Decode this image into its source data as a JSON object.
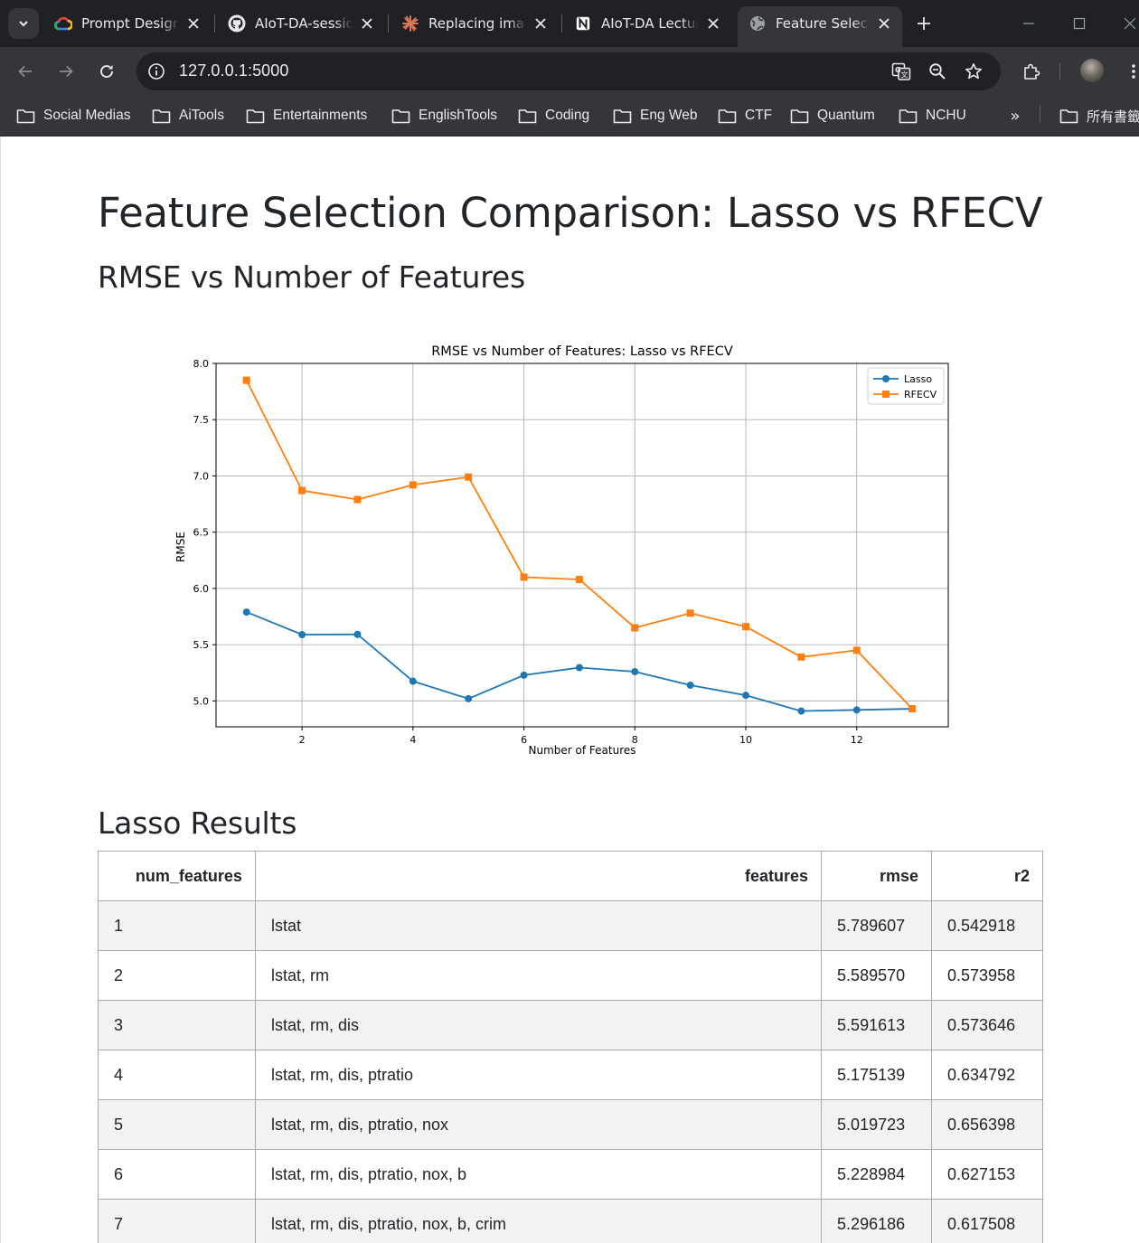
{
  "browser": {
    "tabs": [
      {
        "title": "Prompt Design",
        "icon": "google-cloud-icon",
        "active": false
      },
      {
        "title": "AIoT-DA-session",
        "icon": "github-icon",
        "active": false
      },
      {
        "title": "Replacing image",
        "icon": "claude-icon",
        "active": false
      },
      {
        "title": "AIoT-DA Lecture",
        "icon": "notion-icon",
        "active": false
      },
      {
        "title": "Feature Selection",
        "icon": "globe-icon",
        "active": true
      }
    ],
    "url": "127.0.0.1:5000",
    "bookmarks": [
      "Social Medias",
      "AiTools",
      "Entertainments",
      "EnglishTools",
      "Coding",
      "Eng Web",
      "CTF",
      "Quantum",
      "NCHU"
    ],
    "all_bookmarks_label": "所有書籤",
    "more_label": "»"
  },
  "page": {
    "title": "Feature Selection Comparison: Lasso vs RFECV",
    "chart_heading": "RMSE vs Number of Features",
    "table_heading": "Lasso Results"
  },
  "chart_data": {
    "type": "line",
    "title": "RMSE vs Number of Features: Lasso vs RFECV",
    "xlabel": "Number of Features",
    "ylabel": "RMSE",
    "x": [
      1,
      2,
      3,
      4,
      5,
      6,
      7,
      8,
      9,
      10,
      11,
      12,
      13
    ],
    "xlim": [
      0.45,
      13.65
    ],
    "ylim": [
      4.77,
      8.0
    ],
    "xticks": [
      "2",
      "4",
      "6",
      "8",
      "10",
      "12"
    ],
    "yticks": [
      "5.0",
      "5.5",
      "6.0",
      "6.5",
      "7.0",
      "7.5",
      "8.0"
    ],
    "grid": true,
    "legend_position": "upper right",
    "series": [
      {
        "name": "Lasso",
        "color": "#1f77b4",
        "marker": "circle",
        "values": [
          5.789607,
          5.58957,
          5.591613,
          5.175139,
          5.019723,
          5.228984,
          5.296186,
          5.26,
          5.14,
          5.05,
          4.91,
          4.92,
          4.93
        ]
      },
      {
        "name": "RFECV",
        "color": "#ff7f0e",
        "marker": "square",
        "values": [
          7.85,
          6.87,
          6.79,
          6.92,
          6.99,
          6.1,
          6.08,
          5.65,
          5.78,
          5.66,
          5.39,
          5.45,
          4.93
        ]
      }
    ]
  },
  "table": {
    "headers": [
      "num_features",
      "features",
      "rmse",
      "r2"
    ],
    "rows": [
      [
        "1",
        "lstat",
        "5.789607",
        "0.542918"
      ],
      [
        "2",
        "lstat, rm",
        "5.589570",
        "0.573958"
      ],
      [
        "3",
        "lstat, rm, dis",
        "5.591613",
        "0.573646"
      ],
      [
        "4",
        "lstat, rm, dis, ptratio",
        "5.175139",
        "0.634792"
      ],
      [
        "5",
        "lstat, rm, dis, ptratio, nox",
        "5.019723",
        "0.656398"
      ],
      [
        "6",
        "lstat, rm, dis, ptratio, nox, b",
        "5.228984",
        "0.627153"
      ],
      [
        "7",
        "lstat, rm, dis, ptratio, nox, b, crim",
        "5.296186",
        "0.617508"
      ]
    ]
  }
}
